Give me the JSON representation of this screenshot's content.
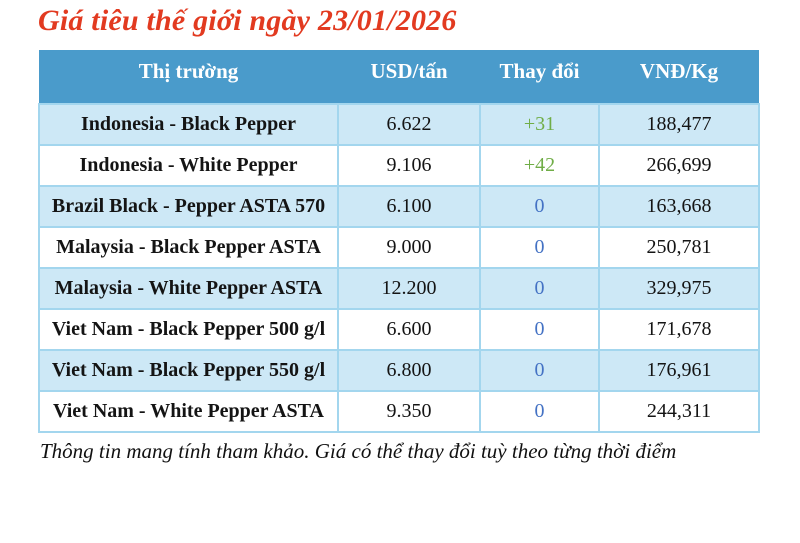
{
  "chart_data": {
    "type": "table",
    "title": "Giá tiêu thế giới ngày 23/01/2026",
    "columns": [
      "Thị trường",
      "USD/tấn",
      "Thay đổi",
      "VNĐ/Kg"
    ],
    "rows": [
      {
        "market": "Indonesia - Black Pepper",
        "usd_per_ton": "6.622",
        "change": "+31",
        "vnd_per_kg": "188,477"
      },
      {
        "market": "Indonesia - White Pepper",
        "usd_per_ton": "9.106",
        "change": "+42",
        "vnd_per_kg": "266,699"
      },
      {
        "market": "Brazil Black - Pepper ASTA 570",
        "usd_per_ton": "6.100",
        "change": "0",
        "vnd_per_kg": "163,668"
      },
      {
        "market": "Malaysia - Black Pepper ASTA",
        "usd_per_ton": "9.000",
        "change": "0",
        "vnd_per_kg": "250,781"
      },
      {
        "market": "Malaysia - White Pepper ASTA",
        "usd_per_ton": "12.200",
        "change": "0",
        "vnd_per_kg": "329,975"
      },
      {
        "market": "Viet Nam - Black Pepper 500 g/l",
        "usd_per_ton": "6.600",
        "change": "0",
        "vnd_per_kg": "171,678"
      },
      {
        "market": "Viet Nam - Black Pepper 550 g/l",
        "usd_per_ton": "6.800",
        "change": "0",
        "vnd_per_kg": "176,961"
      },
      {
        "market": "Viet Nam - White Pepper ASTA",
        "usd_per_ton": "9.350",
        "change": "0",
        "vnd_per_kg": "244,311"
      }
    ]
  },
  "footer_note": "Thông tin mang tính tham khảo. Giá có thể thay đổi tuỳ theo từng thời điểm",
  "colors": {
    "title_red": "#e23a20",
    "header_blue": "#4a9bcb",
    "row_alt_blue": "#cde8f6",
    "border_blue": "#a3d6ee",
    "change_positive_green": "#70ad47",
    "change_zero_blue": "#4472c4"
  }
}
